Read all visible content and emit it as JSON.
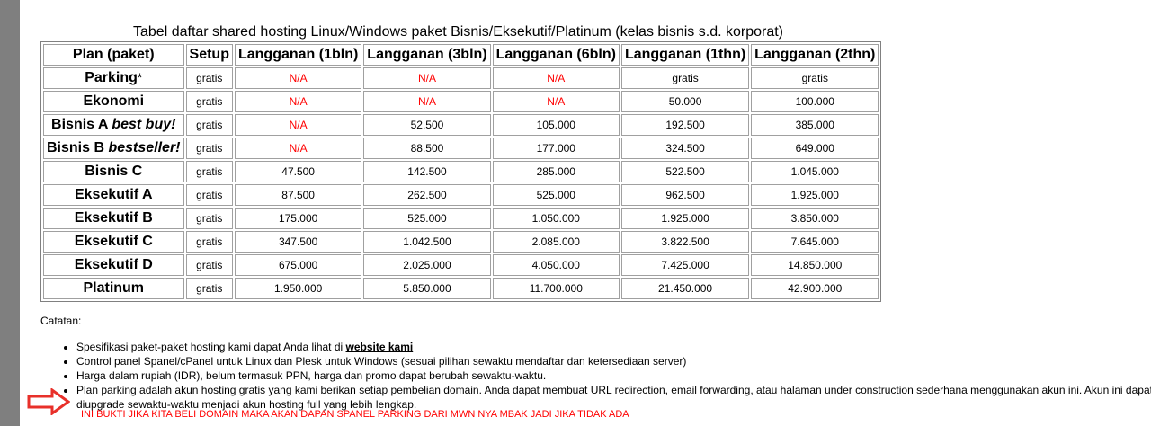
{
  "caption": "Tabel daftar shared hosting Linux/Windows paket Bisnis/Eksekutif/Platinum (kelas bisnis s.d. korporat)",
  "headers": [
    "Plan (paket)",
    "Setup",
    "Langganan (1bln)",
    "Langganan (3bln)",
    "Langganan (6bln)",
    "Langganan (1thn)",
    "Langganan (2thn)"
  ],
  "rows": [
    {
      "plan": "Parking",
      "suffix": "*",
      "setup": "gratis",
      "m1": "N/A",
      "m3": "N/A",
      "m6": "N/A",
      "y1": "gratis",
      "y2": "gratis"
    },
    {
      "plan": "Ekonomi",
      "setup": "gratis",
      "m1": "N/A",
      "m3": "N/A",
      "m6": "N/A",
      "y1": "50.000",
      "y2": "100.000"
    },
    {
      "plan": "Bisnis A",
      "tag": "best buy!",
      "setup": "gratis",
      "m1": "N/A",
      "m3": "52.500",
      "m6": "105.000",
      "y1": "192.500",
      "y2": "385.000"
    },
    {
      "plan": "Bisnis B",
      "tag": "bestseller!",
      "setup": "gratis",
      "m1": "N/A",
      "m3": "88.500",
      "m6": "177.000",
      "y1": "324.500",
      "y2": "649.000"
    },
    {
      "plan": "Bisnis C",
      "setup": "gratis",
      "m1": "47.500",
      "m3": "142.500",
      "m6": "285.000",
      "y1": "522.500",
      "y2": "1.045.000"
    },
    {
      "plan": "Eksekutif A",
      "setup": "gratis",
      "m1": "87.500",
      "m3": "262.500",
      "m6": "525.000",
      "y1": "962.500",
      "y2": "1.925.000"
    },
    {
      "plan": "Eksekutif B",
      "setup": "gratis",
      "m1": "175.000",
      "m3": "525.000",
      "m6": "1.050.000",
      "y1": "1.925.000",
      "y2": "3.850.000"
    },
    {
      "plan": "Eksekutif C",
      "setup": "gratis",
      "m1": "347.500",
      "m3": "1.042.500",
      "m6": "2.085.000",
      "y1": "3.822.500",
      "y2": "7.645.000"
    },
    {
      "plan": "Eksekutif D",
      "setup": "gratis",
      "m1": "675.000",
      "m3": "2.025.000",
      "m6": "4.050.000",
      "y1": "7.425.000",
      "y2": "14.850.000"
    },
    {
      "plan": "Platinum",
      "setup": "gratis",
      "m1": "1.950.000",
      "m3": "5.850.000",
      "m6": "11.700.000",
      "y1": "21.450.000",
      "y2": "42.900.000"
    }
  ],
  "notes_title": "Catatan:",
  "notes": {
    "n1_text": "Spesifikasi paket-paket hosting kami dapat Anda lihat di ",
    "n1_link": "website kami",
    "n2": "Control panel Spanel/cPanel untuk Linux dan Plesk untuk Windows (sesuai pilihan sewaktu mendaftar dan ketersediaan server)",
    "n3": "Harga dalam rupiah (IDR), belum termasuk PPN, harga dan promo dapat berubah sewaktu-waktu.",
    "n4": "Plan parking adalah akun hosting gratis yang kami berikan setiap pembelian domain. Anda dapat membuat URL redirection, email forwarding, atau halaman under construction sederhana menggunakan akun ini. Akun ini dapat diupgrade sewaktu-waktu menjadi akun hosting full yang lebih lengkap."
  },
  "annotation": "INI BUKTI JIKA KITA BELI DOMAIN MAKA AKAN DAPAN SPANEL PARKING DARI MWN NYA MBAK JADI JIKA TIDAK ADA",
  "colors": {
    "na": "#ff0000",
    "annotation": "#ff0000",
    "arrow": "#e8302a"
  },
  "icons": {
    "arrow": "right-arrow-outline-icon",
    "bullet": "disc"
  }
}
